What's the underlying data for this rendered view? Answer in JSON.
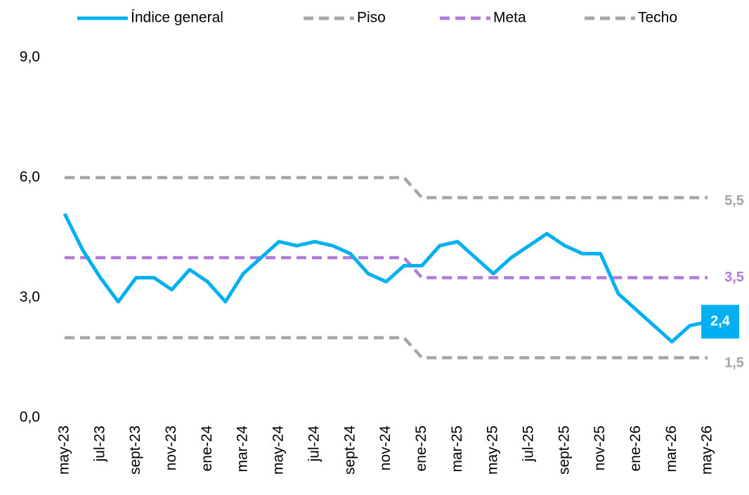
{
  "chart_data": {
    "type": "line",
    "categories": [
      "may-23",
      null,
      "jul-23",
      null,
      "sept-23",
      null,
      "nov-23",
      null,
      "ene-24",
      null,
      "mar-24",
      null,
      "may-24",
      null,
      "jul-24",
      null,
      "sept-24",
      null,
      "nov-24",
      null,
      "ene-25",
      null,
      "mar-25",
      null,
      "may-25",
      null,
      "jul-25",
      null,
      "sept-25",
      null,
      "nov-25",
      null,
      "ene-26",
      null,
      "mar-26",
      null,
      "may-26"
    ],
    "series": [
      {
        "name": "Índice general",
        "color": "#00b0f0",
        "dash": false,
        "values": [
          5.1,
          4.2,
          3.5,
          2.9,
          3.5,
          3.5,
          3.2,
          3.7,
          3.4,
          2.9,
          3.6,
          4.0,
          4.4,
          4.3,
          4.4,
          4.3,
          4.1,
          3.6,
          3.4,
          3.8,
          3.8,
          4.3,
          4.4,
          4.0,
          3.6,
          4.0,
          4.3,
          4.6,
          4.3,
          4.1,
          4.1,
          3.1,
          2.7,
          2.3,
          1.9,
          2.3,
          2.4
        ],
        "value_labels": [
          null,
          null,
          null,
          null,
          null,
          null,
          null,
          null,
          null,
          null,
          null,
          null,
          null,
          null,
          null,
          null,
          null,
          null,
          null,
          null,
          null,
          null,
          null,
          null,
          null,
          null,
          null,
          null,
          null,
          null,
          null,
          null,
          null,
          null,
          null,
          null,
          "2,4"
        ]
      },
      {
        "name": "Piso",
        "color": "#a6a6a6",
        "dash": true,
        "values": [
          2,
          2,
          2,
          2,
          2,
          2,
          2,
          2,
          2,
          2,
          2,
          2,
          2,
          2,
          2,
          2,
          2,
          2,
          2,
          2,
          1.5,
          1.5,
          1.5,
          1.5,
          1.5,
          1.5,
          1.5,
          1.5,
          1.5,
          1.5,
          1.5,
          1.5,
          1.5,
          1.5,
          1.5,
          1.5,
          1.5
        ],
        "value_labels": [
          null,
          null,
          null,
          null,
          null,
          null,
          null,
          null,
          null,
          null,
          null,
          null,
          null,
          null,
          null,
          null,
          null,
          null,
          null,
          null,
          null,
          null,
          null,
          null,
          null,
          null,
          null,
          null,
          null,
          null,
          null,
          null,
          null,
          null,
          null,
          null,
          "1,5"
        ]
      },
      {
        "name": "Meta",
        "color": "#b07cd8",
        "dash": true,
        "values": [
          4,
          4,
          4,
          4,
          4,
          4,
          4,
          4,
          4,
          4,
          4,
          4,
          4,
          4,
          4,
          4,
          4,
          4,
          4,
          4,
          3.5,
          3.5,
          3.5,
          3.5,
          3.5,
          3.5,
          3.5,
          3.5,
          3.5,
          3.5,
          3.5,
          3.5,
          3.5,
          3.5,
          3.5,
          3.5,
          3.5
        ],
        "value_labels": [
          null,
          null,
          null,
          null,
          null,
          null,
          null,
          null,
          null,
          null,
          null,
          null,
          null,
          null,
          null,
          null,
          null,
          null,
          null,
          null,
          null,
          null,
          null,
          null,
          null,
          null,
          null,
          null,
          null,
          null,
          null,
          null,
          null,
          null,
          null,
          null,
          "3,5"
        ]
      },
      {
        "name": "Techo",
        "color": "#a6a6a6",
        "dash": true,
        "values": [
          6,
          6,
          6,
          6,
          6,
          6,
          6,
          6,
          6,
          6,
          6,
          6,
          6,
          6,
          6,
          6,
          6,
          6,
          6,
          6,
          5.5,
          5.5,
          5.5,
          5.5,
          5.5,
          5.5,
          5.5,
          5.5,
          5.5,
          5.5,
          5.5,
          5.5,
          5.5,
          5.5,
          5.5,
          5.5,
          5.5
        ],
        "value_labels": [
          null,
          null,
          null,
          null,
          null,
          null,
          null,
          null,
          null,
          null,
          null,
          null,
          null,
          null,
          null,
          null,
          null,
          null,
          null,
          null,
          null,
          null,
          null,
          null,
          null,
          null,
          null,
          null,
          null,
          null,
          null,
          null,
          null,
          null,
          null,
          null,
          "5,5"
        ]
      }
    ],
    "ylim": [
      0,
      9
    ],
    "yticks": [
      {
        "value": 0,
        "label": "0,0"
      },
      {
        "value": 3,
        "label": "3,0"
      },
      {
        "value": 6,
        "label": "6,0"
      },
      {
        "value": 9,
        "label": "9,0"
      }
    ],
    "grid": false,
    "legend": "top"
  }
}
